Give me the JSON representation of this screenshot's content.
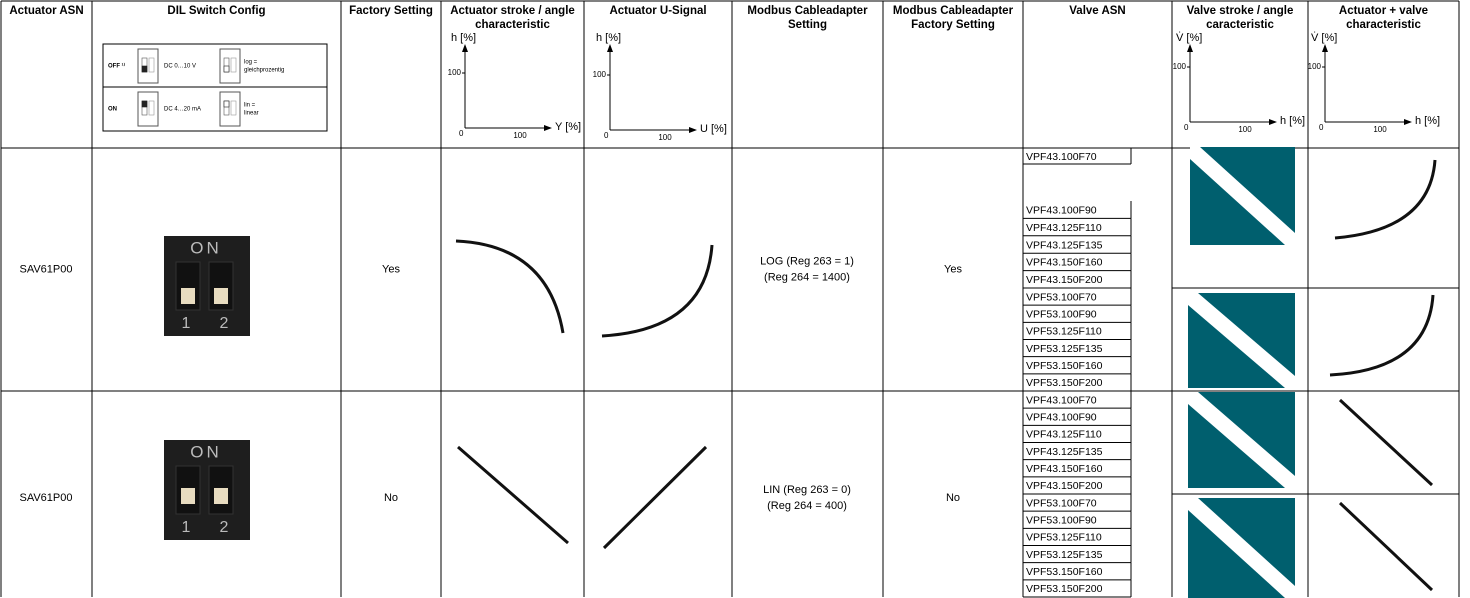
{
  "header": {
    "columns": [
      "Actuator ASN",
      "DIL Switch Config",
      "Factory Setting",
      "Actuator stroke / angle characteristic",
      "Actuator U-Signal",
      "Modbus Cableadapter Setting",
      "Modbus Cableadapter Factory Setting",
      "Valve ASN",
      "Valve stroke / angle caracteristic",
      "Actuator + valve characteristic"
    ]
  },
  "header_charts": [
    {
      "y_label": "h [%]",
      "y_tick": "100",
      "origin": "0",
      "x_tick": "100",
      "x_label": "Y [%]"
    },
    {
      "y_label": "h [%]",
      "y_tick": "100",
      "origin": "0",
      "x_tick": "100",
      "x_label": "U [%]"
    },
    {
      "y_label": "V̇ [%]",
      "y_tick": "100",
      "origin": "0",
      "x_tick": "100",
      "x_label": "h [%]"
    },
    {
      "y_label": "V̇ [%]",
      "y_tick": "100",
      "origin": "0",
      "x_tick": "100",
      "x_label": "h [%]"
    }
  ],
  "dil_legend": [
    {
      "state": "OFF ¹⁾",
      "signal": "DC 0…10 V",
      "mode": [
        "log =",
        "gleichprozentig"
      ]
    },
    {
      "state": "ON",
      "signal": "DC 4…20 mA",
      "mode": [
        "lin =",
        "linear"
      ]
    }
  ],
  "rows": [
    {
      "actuator_asn": "SAV61P00",
      "switch": {
        "on": "ON",
        "left": "1",
        "right": "2"
      },
      "factory_setting": "Yes",
      "modbus_setting": [
        "LOG (Reg 263 = 1)",
        "(Reg 264 = 1400)"
      ],
      "modbus_factory": "Yes",
      "valve_groups": [
        [
          "VPF43.100F70",
          "VPF43.100F90",
          "VPF43.125F110",
          "VPF43.125F135",
          "VPF43.150F160",
          "VPF43.150F200"
        ],
        [
          "VPF53.100F70",
          "VPF53.100F90",
          "VPF53.125F110",
          "VPF53.125F135",
          "VPF53.150F160",
          "VPF53.150F200"
        ]
      ]
    },
    {
      "actuator_asn": "SAV61P00",
      "switch": {
        "on": "ON",
        "left": "1",
        "right": "2"
      },
      "factory_setting": "No",
      "modbus_setting": [
        "LIN (Reg 263 = 0)",
        "(Reg 264 = 400)"
      ],
      "modbus_factory": "No",
      "valve_groups": [
        [
          "VPF43.100F70",
          "VPF43.100F90",
          "VPF43.125F110",
          "VPF43.125F135",
          "VPF43.150F160",
          "VPF43.150F200"
        ],
        [
          "VPF53.100F70",
          "VPF53.100F90",
          "VPF53.125F110",
          "VPF53.125F135",
          "VPF53.150F160",
          "VPF53.150F200"
        ]
      ]
    }
  ]
}
